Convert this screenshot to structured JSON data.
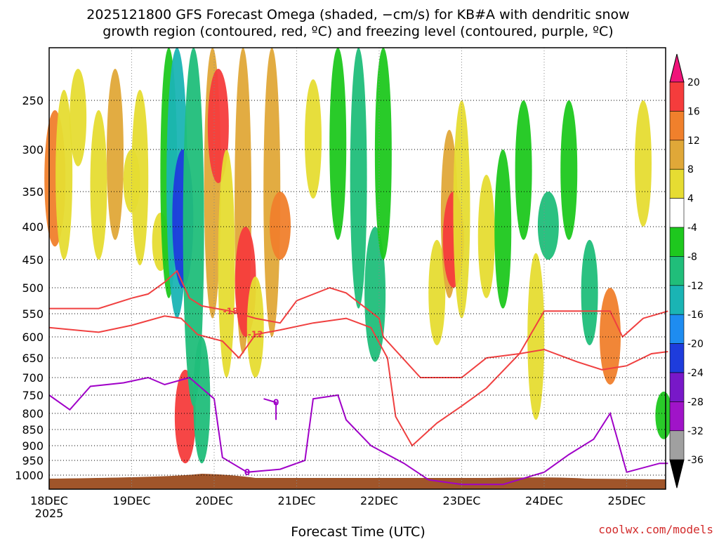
{
  "header": {
    "title_line1": "2025121800 GFS Forecast Omega (shaded, −cm/s) for KB#A with dendritic snow",
    "title_line2": "growth region (contoured, red, ºC) and freezing level (contoured, purple, ºC)"
  },
  "footer": {
    "xlabel": "Forecast Time (UTC)",
    "credit": "coolwx.com/models"
  },
  "chart_data": {
    "type": "heatmap",
    "x_axis": {
      "tick_labels": [
        "18DEC",
        "19DEC",
        "20DEC",
        "21DEC",
        "22DEC",
        "23DEC",
        "24DEC",
        "25DEC"
      ],
      "year_label": "2025",
      "range_days": [
        0,
        7.5
      ]
    },
    "y_axis": {
      "units": "hPa",
      "reversed": true,
      "tick_labels": [
        250,
        300,
        350,
        400,
        450,
        500,
        550,
        600,
        650,
        700,
        750,
        800,
        850,
        900,
        950,
        1000
      ],
      "range": [
        200,
        1030
      ]
    },
    "colorbar": {
      "labels": [
        20,
        16,
        12,
        8,
        4,
        -4,
        -8,
        -12,
        -16,
        -20,
        -24,
        -28,
        -32,
        -36
      ],
      "colors": [
        "#f0147a",
        "#f53c3c",
        "#f0802c",
        "#e0a838",
        "#e6dc32",
        "#ffffff",
        "#1ec81e",
        "#20be7a",
        "#1ab4b4",
        "#1e8cf0",
        "#1e3cdc",
        "#7818c8",
        "#a014c8",
        "#a0a0a0",
        "#000000"
      ]
    },
    "grid": "dotted",
    "omega_cells": [
      {
        "t": 0.07,
        "p": [
          260,
          430
        ],
        "v": 12
      },
      {
        "t": 0.18,
        "p": [
          240,
          450
        ],
        "v": 6
      },
      {
        "t": 0.35,
        "p": [
          220,
          320
        ],
        "v": 5
      },
      {
        "t": 0.6,
        "p": [
          260,
          450
        ],
        "v": 6
      },
      {
        "t": 0.8,
        "p": [
          220,
          420
        ],
        "v": 10
      },
      {
        "t": 1.0,
        "p": [
          300,
          380
        ],
        "v": 6
      },
      {
        "t": 1.1,
        "p": [
          240,
          460
        ],
        "v": 6
      },
      {
        "t": 1.35,
        "p": [
          380,
          470
        ],
        "v": 6
      },
      {
        "t": 1.45,
        "p": [
          200,
          520
        ],
        "v": -8
      },
      {
        "t": 1.55,
        "p": [
          200,
          560
        ],
        "v": -14
      },
      {
        "t": 1.62,
        "p": [
          300,
          500
        ],
        "v": -22
      },
      {
        "t": 1.65,
        "p": [
          680,
          960
        ],
        "v": 16
      },
      {
        "t": 1.75,
        "p": [
          200,
          780
        ],
        "v": -12
      },
      {
        "t": 1.85,
        "p": [
          600,
          960
        ],
        "v": -10
      },
      {
        "t": 1.98,
        "p": [
          200,
          560
        ],
        "v": 8
      },
      {
        "t": 2.05,
        "p": [
          220,
          340
        ],
        "v": 18
      },
      {
        "t": 2.15,
        "p": [
          300,
          700
        ],
        "v": 5
      },
      {
        "t": 2.35,
        "p": [
          200,
          640
        ],
        "v": 10
      },
      {
        "t": 2.38,
        "p": [
          400,
          600
        ],
        "v": 18
      },
      {
        "t": 2.5,
        "p": [
          480,
          700
        ],
        "v": 6
      },
      {
        "t": 2.7,
        "p": [
          200,
          600
        ],
        "v": 10
      },
      {
        "t": 2.8,
        "p": [
          350,
          450
        ],
        "v": 12
      },
      {
        "t": 3.2,
        "p": [
          230,
          360
        ],
        "v": 5
      },
      {
        "t": 3.5,
        "p": [
          200,
          420
        ],
        "v": -8
      },
      {
        "t": 3.75,
        "p": [
          200,
          540
        ],
        "v": -9
      },
      {
        "t": 3.95,
        "p": [
          400,
          660
        ],
        "v": -12
      },
      {
        "t": 4.05,
        "p": [
          200,
          450
        ],
        "v": -8
      },
      {
        "t": 4.7,
        "p": [
          420,
          620
        ],
        "v": 6
      },
      {
        "t": 4.85,
        "p": [
          280,
          520
        ],
        "v": 10
      },
      {
        "t": 4.9,
        "p": [
          350,
          500
        ],
        "v": 18
      },
      {
        "t": 5.0,
        "p": [
          250,
          560
        ],
        "v": 6
      },
      {
        "t": 5.3,
        "p": [
          330,
          520
        ],
        "v": 6
      },
      {
        "t": 5.5,
        "p": [
          300,
          540
        ],
        "v": -8
      },
      {
        "t": 5.75,
        "p": [
          250,
          420
        ],
        "v": -8
      },
      {
        "t": 5.9,
        "p": [
          440,
          820
        ],
        "v": 5
      },
      {
        "t": 6.05,
        "p": [
          350,
          450
        ],
        "v": -12
      },
      {
        "t": 6.3,
        "p": [
          250,
          420
        ],
        "v": -8
      },
      {
        "t": 6.55,
        "p": [
          420,
          620
        ],
        "v": -10
      },
      {
        "t": 6.8,
        "p": [
          500,
          720
        ],
        "v": 12
      },
      {
        "t": 7.2,
        "p": [
          250,
          400
        ],
        "v": 6
      },
      {
        "t": 7.45,
        "p": [
          740,
          880
        ],
        "v": -8
      }
    ],
    "dgz_contours": [
      {
        "label": "-18",
        "points": [
          [
            0,
            540
          ],
          [
            0.6,
            540
          ],
          [
            1.0,
            520
          ],
          [
            1.2,
            512
          ],
          [
            1.4,
            490
          ],
          [
            1.55,
            470
          ],
          [
            1.7,
            520
          ],
          [
            1.85,
            535
          ],
          [
            2.2,
            545
          ],
          [
            2.5,
            560
          ],
          [
            2.8,
            570
          ],
          [
            3.0,
            525
          ],
          [
            3.4,
            500
          ],
          [
            3.6,
            510
          ],
          [
            4.0,
            560
          ],
          [
            4.05,
            600
          ],
          [
            4.5,
            700
          ],
          [
            5.0,
            700
          ],
          [
            5.3,
            650
          ],
          [
            5.7,
            640
          ],
          [
            6.0,
            545
          ],
          [
            6.8,
            545
          ],
          [
            6.95,
            600
          ],
          [
            7.2,
            560
          ],
          [
            7.5,
            545
          ]
        ]
      },
      {
        "label": "-12",
        "points": [
          [
            0,
            580
          ],
          [
            0.6,
            590
          ],
          [
            1.0,
            575
          ],
          [
            1.4,
            555
          ],
          [
            1.6,
            560
          ],
          [
            1.8,
            595
          ],
          [
            2.1,
            610
          ],
          [
            2.3,
            650
          ],
          [
            2.5,
            595
          ],
          [
            2.8,
            585
          ],
          [
            3.2,
            570
          ],
          [
            3.6,
            560
          ],
          [
            3.9,
            580
          ],
          [
            4.1,
            650
          ],
          [
            4.2,
            810
          ],
          [
            4.4,
            900
          ],
          [
            4.7,
            830
          ],
          [
            5.0,
            780
          ],
          [
            5.3,
            730
          ],
          [
            5.7,
            640
          ],
          [
            6.0,
            630
          ],
          [
            6.4,
            660
          ],
          [
            6.7,
            680
          ],
          [
            7.0,
            670
          ],
          [
            7.3,
            640
          ],
          [
            7.5,
            635
          ]
        ]
      }
    ],
    "freezing_contours": [
      {
        "label": "0",
        "points": [
          [
            0,
            750
          ],
          [
            0.25,
            790
          ],
          [
            0.5,
            725
          ],
          [
            0.9,
            715
          ],
          [
            1.2,
            700
          ],
          [
            1.4,
            720
          ],
          [
            1.7,
            700
          ],
          [
            2.0,
            760
          ],
          [
            2.1,
            940
          ],
          [
            2.4,
            990
          ],
          [
            2.8,
            980
          ],
          [
            3.1,
            950
          ],
          [
            3.2,
            760
          ],
          [
            3.5,
            750
          ],
          [
            3.6,
            820
          ],
          [
            3.9,
            900
          ],
          [
            4.3,
            960
          ],
          [
            4.6,
            1010
          ],
          [
            5.0,
            1020
          ],
          [
            5.5,
            1020
          ],
          [
            6.0,
            990
          ],
          [
            6.3,
            930
          ],
          [
            6.6,
            880
          ],
          [
            6.8,
            800
          ],
          [
            7.0,
            990
          ],
          [
            7.4,
            960
          ],
          [
            7.5,
            960
          ]
        ]
      },
      {
        "label": "0",
        "points": [
          [
            2.6,
            760
          ],
          [
            2.75,
            770
          ],
          [
            2.75,
            820
          ]
        ]
      }
    ]
  }
}
